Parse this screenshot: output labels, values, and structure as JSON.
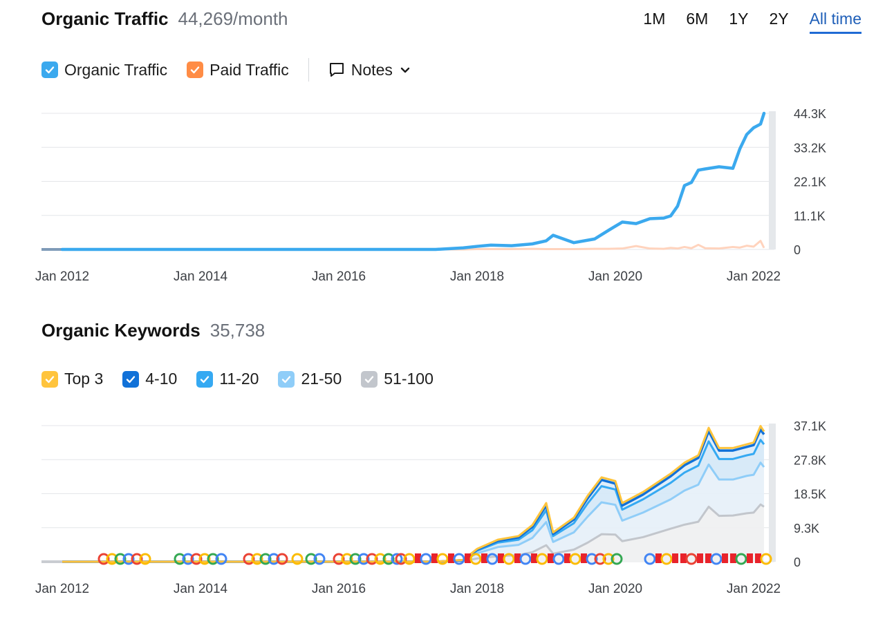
{
  "traffic": {
    "title": "Organic Traffic",
    "value": "44,269/month",
    "ranges": [
      {
        "label": "1M",
        "active": false
      },
      {
        "label": "6M",
        "active": false
      },
      {
        "label": "1Y",
        "active": false
      },
      {
        "label": "2Y",
        "active": false
      },
      {
        "label": "All time",
        "active": true
      }
    ],
    "legend": [
      {
        "label": "Organic Traffic",
        "color": "#3ba9ee"
      },
      {
        "label": "Paid Traffic",
        "color": "#ff8c45"
      }
    ],
    "notes_label": "Notes"
  },
  "keywords": {
    "title": "Organic Keywords",
    "value": "35,738",
    "legend": [
      {
        "label": "Top 3",
        "color": "#ffc43d"
      },
      {
        "label": "4-10",
        "color": "#1171d8"
      },
      {
        "label": "11-20",
        "color": "#35a9f2"
      },
      {
        "label": "21-50",
        "color": "#8fcdf8"
      },
      {
        "label": "51-100",
        "color": "#c2c6cc"
      }
    ]
  },
  "chart_data": [
    {
      "type": "line",
      "title": "Organic Traffic",
      "x": [
        2012.0,
        2013.0,
        2014.0,
        2015.0,
        2016.0,
        2016.8,
        2017.4,
        2017.8,
        2018.0,
        2018.2,
        2018.5,
        2018.8,
        2019.0,
        2019.1,
        2019.4,
        2019.7,
        2019.9,
        2020.1,
        2020.3,
        2020.5,
        2020.7,
        2020.8,
        2020.9,
        2021.0,
        2021.1,
        2021.2,
        2021.3,
        2021.5,
        2021.7,
        2021.8,
        2021.9,
        2022.0,
        2022.1,
        2022.15
      ],
      "x_ticks": [
        "Jan 2012",
        "Jan 2014",
        "Jan 2016",
        "Jan 2018",
        "Jan 2020",
        "Jan 2022"
      ],
      "x_tick_values": [
        2012,
        2014,
        2016,
        2018,
        2020,
        2022
      ],
      "xlim": [
        2011.7,
        2022.3
      ],
      "y_ticks": [
        "0",
        "11.1K",
        "22.1K",
        "33.2K",
        "44.3K"
      ],
      "ylim": [
        0,
        44300
      ],
      "grid": true,
      "series": [
        {
          "name": "Organic Traffic",
          "color": "#3ba9ee",
          "values": [
            0,
            0,
            0,
            0,
            0,
            0,
            0,
            500,
            1000,
            1400,
            1200,
            1800,
            2800,
            4600,
            2200,
            3400,
            6200,
            8900,
            8400,
            10000,
            10200,
            10900,
            14100,
            20800,
            21800,
            25800,
            26200,
            26900,
            26400,
            32700,
            37400,
            39600,
            40800,
            44300
          ]
        },
        {
          "name": "Paid Traffic",
          "color": "#ff8c45",
          "values": [
            0,
            0,
            0,
            0,
            0,
            0,
            0,
            0,
            100,
            100,
            100,
            200,
            100,
            100,
            100,
            200,
            200,
            300,
            1100,
            300,
            200,
            500,
            300,
            800,
            400,
            1500,
            400,
            300,
            800,
            600,
            1200,
            900,
            2800,
            500
          ]
        }
      ]
    },
    {
      "type": "area",
      "title": "Organic Keywords",
      "x": [
        2012.0,
        2013.0,
        2014.0,
        2015.0,
        2016.0,
        2016.8,
        2017.4,
        2017.8,
        2018.0,
        2018.3,
        2018.6,
        2018.8,
        2019.0,
        2019.1,
        2019.4,
        2019.6,
        2019.8,
        2020.0,
        2020.1,
        2020.4,
        2020.8,
        2021.0,
        2021.2,
        2021.35,
        2021.5,
        2021.7,
        2021.9,
        2022.0,
        2022.1,
        2022.15
      ],
      "x_ticks": [
        "Jan 2012",
        "Jan 2014",
        "Jan 2016",
        "Jan 2018",
        "Jan 2020",
        "Jan 2022"
      ],
      "x_tick_values": [
        2012,
        2014,
        2016,
        2018,
        2020,
        2022
      ],
      "xlim": [
        2011.7,
        2022.3
      ],
      "y_ticks": [
        "0",
        "9.3K",
        "18.5K",
        "27.8K",
        "37.1K"
      ],
      "ylim": [
        0,
        37100
      ],
      "grid": true,
      "series": [
        {
          "name": "Top 3",
          "color": "#ffc43d",
          "values": [
            0,
            0,
            0,
            0,
            0,
            0,
            0,
            500,
            3500,
            6000,
            7000,
            10000,
            16000,
            8000,
            12000,
            18000,
            23000,
            22000,
            16000,
            19000,
            24000,
            27000,
            29000,
            36500,
            31000,
            31000,
            32000,
            32500,
            37000,
            35500
          ]
        },
        {
          "name": "4-10",
          "color": "#1171d8",
          "values": [
            0,
            0,
            0,
            0,
            0,
            0,
            0,
            450,
            3300,
            5700,
            6600,
            9500,
            15300,
            7600,
            11500,
            17300,
            22300,
            21300,
            15300,
            18300,
            23300,
            26300,
            28300,
            35600,
            30300,
            30300,
            31300,
            31800,
            36000,
            34700
          ]
        },
        {
          "name": "11-20",
          "color": "#35a9f2",
          "values": [
            0,
            0,
            0,
            0,
            0,
            0,
            0,
            400,
            3000,
            5200,
            6000,
            8600,
            14000,
            7000,
            10500,
            15900,
            20600,
            19700,
            14200,
            17000,
            21500,
            24300,
            26200,
            32800,
            28000,
            28000,
            29000,
            29400,
            33200,
            32000
          ]
        },
        {
          "name": "21-50",
          "color": "#8fcdf8",
          "values": [
            0,
            0,
            0,
            0,
            0,
            0,
            0,
            300,
            2300,
            4000,
            4600,
            6500,
            10800,
            5400,
            8000,
            12300,
            16200,
            15500,
            11200,
            13400,
            17000,
            19400,
            21000,
            26500,
            22400,
            22400,
            23400,
            23700,
            27000,
            25800
          ]
        },
        {
          "name": "51-100",
          "color": "#c2c6cc",
          "values": [
            0,
            0,
            0,
            0,
            0,
            0,
            0,
            100,
            900,
            1500,
            1800,
            2600,
            4500,
            2200,
            3300,
            5200,
            7500,
            7400,
            5600,
            6700,
            9000,
            10100,
            10900,
            15000,
            12500,
            12600,
            13200,
            13400,
            15600,
            15000
          ]
        }
      ]
    }
  ]
}
